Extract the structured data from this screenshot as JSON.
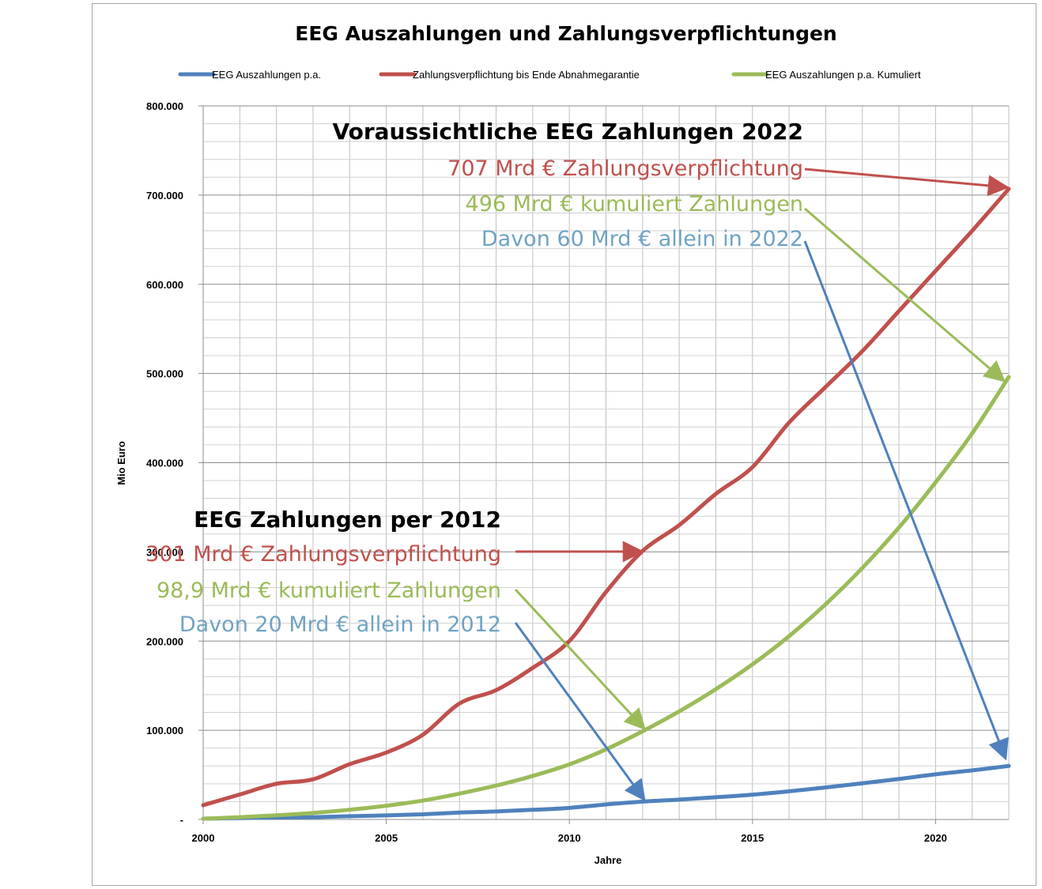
{
  "chart_data": {
    "type": "line",
    "title": "EEG Auszahlungen und Zahlungsverpflichtungen",
    "xlabel": "Jahre",
    "ylabel": "Mio Euro",
    "xlim": [
      2000,
      2022
    ],
    "ylim": [
      0,
      800000
    ],
    "x_ticks": [
      "2000",
      "2005",
      "2010",
      "2015",
      "2020"
    ],
    "x_tick_values": [
      2000,
      2005,
      2010,
      2015,
      2020
    ],
    "y_ticks": [
      "-",
      "100.000",
      "200.000",
      "300.000",
      "400.000",
      "500.000",
      "600.000",
      "700.000",
      "800.000"
    ],
    "y_tick_values": [
      0,
      100000,
      200000,
      300000,
      400000,
      500000,
      600000,
      700000,
      800000
    ],
    "grid": true,
    "legend_position": "top",
    "x": [
      2000,
      2001,
      2002,
      2003,
      2004,
      2005,
      2006,
      2007,
      2008,
      2009,
      2010,
      2011,
      2012,
      2013,
      2014,
      2015,
      2016,
      2017,
      2018,
      2019,
      2020,
      2021,
      2022
    ],
    "series": [
      {
        "name": "EEG Auszahlungen p.a.",
        "color": "#4f81bd",
        "values": [
          900,
          1600,
          2200,
          2600,
          3600,
          4500,
          5800,
          7800,
          9000,
          10800,
          13000,
          16800,
          20000,
          22300,
          24900,
          27800,
          31600,
          35900,
          40500,
          45400,
          50600,
          55000,
          60000
        ]
      },
      {
        "name": "Zahlungsverpflichtung bis Ende Abnahmegarantie",
        "color": "#c0504d",
        "values": [
          16000,
          28000,
          40000,
          45000,
          62000,
          75000,
          95000,
          130000,
          145000,
          170000,
          200000,
          255000,
          301000,
          330000,
          365000,
          395000,
          445000,
          485000,
          525000,
          570000,
          615000,
          660000,
          707000
        ]
      },
      {
        "name": "EEG Auszahlungen p.a. Kumuliert",
        "color": "#9bbb59",
        "values": [
          900,
          2500,
          4700,
          7300,
          10900,
          15400,
          21200,
          29000,
          38000,
          48800,
          61800,
          78600,
          98900,
          121200,
          146100,
          173900,
          205500,
          241400,
          281900,
          327300,
          377900,
          432900,
          496000
        ]
      }
    ],
    "annotations": {
      "head_2022": "Voraussichtliche EEG Zahlungen 2022",
      "red_2022": "707 Mrd € Zahlungsverpflichtung",
      "green_2022": "496 Mrd € kumuliert Zahlungen",
      "blue_2022": "Davon 60 Mrd € allein in 2022",
      "head_2012": "EEG Zahlungen per 2012",
      "red_2012": "301 Mrd € Zahlungsverpflichtung",
      "green_2012": "98,9 Mrd € kumuliert Zahlungen",
      "blue_2012": "Davon 20 Mrd € allein in 2012"
    }
  }
}
